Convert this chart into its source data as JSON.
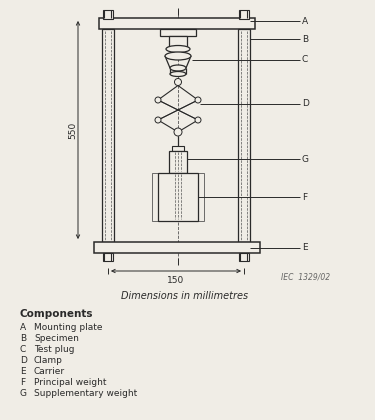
{
  "bg_color": "#f0ede6",
  "line_color": "#2a2a2a",
  "dash_color": "#555555",
  "title_italic": "Dimensions in millimetres",
  "iec_label": "IEC  1329/02",
  "components_title": "Components",
  "components": [
    [
      "A",
      "Mounting plate"
    ],
    [
      "B",
      "Specimen"
    ],
    [
      "C",
      "Test plug"
    ],
    [
      "D",
      "Clamp"
    ],
    [
      "E",
      "Carrier"
    ],
    [
      "F",
      "Principal weight"
    ],
    [
      "G",
      "Supplementary weight"
    ]
  ],
  "dim_550": "550",
  "dim_150": "150",
  "figsize": [
    3.75,
    4.2
  ],
  "dpi": 100
}
